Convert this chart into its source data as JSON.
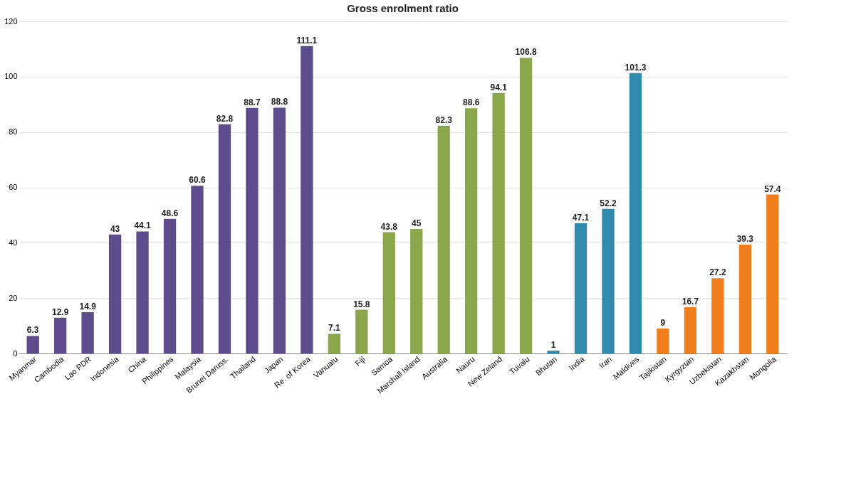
{
  "chart_data": {
    "type": "bar",
    "title": "Gross enrolment ratio",
    "categories": [
      "Myanmar",
      "Cambodia",
      "Lao PDR",
      "Indonesia",
      "China",
      "Philippines",
      "Malaysia",
      "Brunei Daruss.",
      "Thailand",
      "Japan",
      "Re. of Korea",
      "Vanuatu",
      "Fiji",
      "Samoa",
      "Marshall Island",
      "Australia",
      "Nauru",
      "New Zeland",
      "Tuvalu",
      "Bhutan",
      "India",
      "Iran",
      "Maldives",
      "Tajikistan",
      "Kyrgyztan",
      "Uzbekistan",
      "Kazakhstan",
      "Mongolia"
    ],
    "values": [
      6.3,
      12.9,
      14.9,
      43,
      44.1,
      48.6,
      60.6,
      82.8,
      88.7,
      88.8,
      111.1,
      7.1,
      15.8,
      43.8,
      45,
      82.3,
      88.6,
      94.1,
      106.8,
      1,
      47.1,
      52.2,
      101.3,
      9,
      16.7,
      27.2,
      39.3,
      57.4
    ],
    "colors": [
      "#5e4b8b",
      "#5e4b8b",
      "#5e4b8b",
      "#5e4b8b",
      "#5e4b8b",
      "#5e4b8b",
      "#5e4b8b",
      "#5e4b8b",
      "#5e4b8b",
      "#5e4b8b",
      "#5e4b8b",
      "#8aa84b",
      "#8aa84b",
      "#8aa84b",
      "#8aa84b",
      "#8aa84b",
      "#8aa84b",
      "#8aa84b",
      "#8aa84b",
      "#2f8aab",
      "#2f8aab",
      "#2f8aab",
      "#2f8aab",
      "#f07e1c",
      "#f07e1c",
      "#f07e1c",
      "#f07e1c",
      "#f07e1c"
    ],
    "ylim": [
      0,
      120
    ],
    "yticks": [
      0,
      20,
      40,
      60,
      80,
      100,
      120
    ],
    "grid": "y",
    "data_labels": true
  }
}
